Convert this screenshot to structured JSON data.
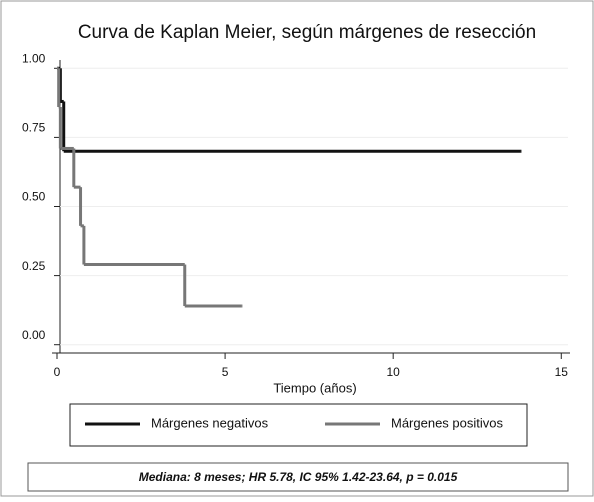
{
  "chart_data": {
    "type": "step",
    "title": "Curva de Kaplan Meier, según márgenes de resección",
    "xlabel": "Tiempo (años)",
    "xlim": [
      0,
      15.2
    ],
    "xticks": [
      0,
      5,
      10,
      15
    ],
    "ylim": [
      -0.03,
      1.03
    ],
    "yticks": [
      {
        "value": 0,
        "label": "0.00"
      },
      {
        "value": 0.25,
        "label": "0.25"
      },
      {
        "value": 0.5,
        "label": "0.50"
      },
      {
        "value": 0.75,
        "label": "0.75"
      },
      {
        "value": 1,
        "label": "1.00"
      }
    ],
    "grid": true,
    "series": [
      {
        "name": "Márgenes negativos",
        "color": "#111111",
        "x": [
          0,
          0.1,
          0.2,
          13.8
        ],
        "values": [
          1,
          0.88,
          0.7,
          0.7
        ]
      },
      {
        "name": "Márgenes positivos",
        "color": "#777777",
        "x": [
          0,
          0.05,
          0.1,
          0.5,
          0.7,
          0.8,
          3.8,
          5.5
        ],
        "values": [
          1,
          0.86,
          0.71,
          0.57,
          0.43,
          0.29,
          0.14,
          0.14
        ]
      }
    ],
    "note": "Mediana: 8 meses;  HR 5.78, IC 95% 1.42-23.64, p = 0.015"
  }
}
